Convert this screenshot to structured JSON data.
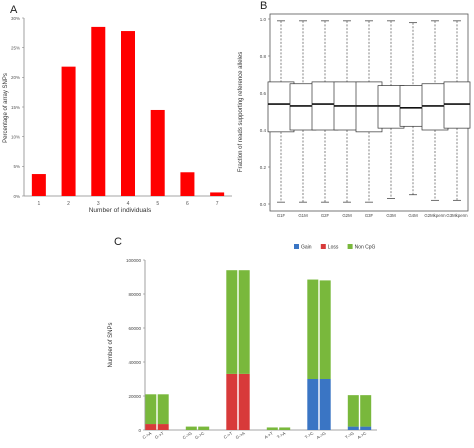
{
  "chart_data": [
    {
      "panel": "A",
      "type": "bar",
      "categories": [
        "1",
        "2",
        "3",
        "4",
        "5",
        "6",
        "7"
      ],
      "values": [
        3.7,
        21.8,
        28.5,
        27.8,
        14.5,
        4.0,
        0.6
      ],
      "xlabel": "Number of individuals",
      "ylabel": "Percentage of array SNPs",
      "ylim": [
        0,
        30
      ],
      "yticks": [
        "0%",
        "5%",
        "10%",
        "15%",
        "20%",
        "25%",
        "30%"
      ],
      "color": "#ff0000",
      "grid": false
    },
    {
      "panel": "B",
      "type": "box",
      "categories": [
        "G1F",
        "G1M",
        "G2F",
        "G2M",
        "G3F",
        "G3M",
        "G4M",
        "G2Mkperm",
        "G3Mkperm"
      ],
      "boxes": [
        {
          "min": 0.01,
          "q1": 0.39,
          "median": 0.54,
          "q3": 0.66,
          "max": 0.99
        },
        {
          "min": 0.01,
          "q1": 0.4,
          "median": 0.53,
          "q3": 0.65,
          "max": 0.99
        },
        {
          "min": 0.01,
          "q1": 0.4,
          "median": 0.54,
          "q3": 0.66,
          "max": 0.99
        },
        {
          "min": 0.01,
          "q1": 0.4,
          "median": 0.53,
          "q3": 0.66,
          "max": 0.99
        },
        {
          "min": 0.01,
          "q1": 0.39,
          "median": 0.53,
          "q3": 0.66,
          "max": 0.99
        },
        {
          "min": 0.03,
          "q1": 0.41,
          "median": 0.53,
          "q3": 0.64,
          "max": 0.99
        },
        {
          "min": 0.05,
          "q1": 0.42,
          "median": 0.52,
          "q3": 0.64,
          "max": 0.98
        },
        {
          "min": 0.02,
          "q1": 0.4,
          "median": 0.53,
          "q3": 0.65,
          "max": 0.99
        },
        {
          "min": 0.02,
          "q1": 0.41,
          "median": 0.54,
          "q3": 0.66,
          "max": 0.99
        }
      ],
      "reference_line": 0.5,
      "ylabel": "Fraction of reads supporting reference alleles",
      "ylim": [
        0,
        1
      ],
      "yticks": [
        "0.0",
        "0.2",
        "0.4",
        "0.6",
        "0.8",
        "1.0"
      ],
      "grid": false
    },
    {
      "panel": "C",
      "type": "bar",
      "stacked": true,
      "categories": [
        "C->A",
        "G->T",
        "C->G",
        "G->C",
        "C->T",
        "G->A",
        "A->T",
        "T->A",
        "T->C",
        "A->G",
        "T->G",
        "A->C"
      ],
      "series": [
        {
          "name": "Gain",
          "color": "#3a75c4",
          "values": [
            0,
            0,
            0,
            0,
            0,
            0,
            0,
            0,
            30000,
            30000,
            2000,
            2000
          ]
        },
        {
          "name": "Loss",
          "color": "#d83a3a",
          "values": [
            3500,
            3500,
            0,
            0,
            33000,
            33000,
            0,
            0,
            0,
            0,
            0,
            0
          ]
        },
        {
          "name": "Non CpG",
          "color": "#79b83c",
          "values": [
            17500,
            17500,
            2000,
            2000,
            61000,
            61000,
            1500,
            1500,
            58500,
            58000,
            18500,
            18500
          ]
        }
      ],
      "ylabel": "Number of SNPs",
      "ylim": [
        0,
        100000
      ],
      "yticks": [
        "0",
        "20000",
        "40000",
        "60000",
        "80000",
        "100000"
      ],
      "legend_position": "top",
      "grid": false
    }
  ]
}
